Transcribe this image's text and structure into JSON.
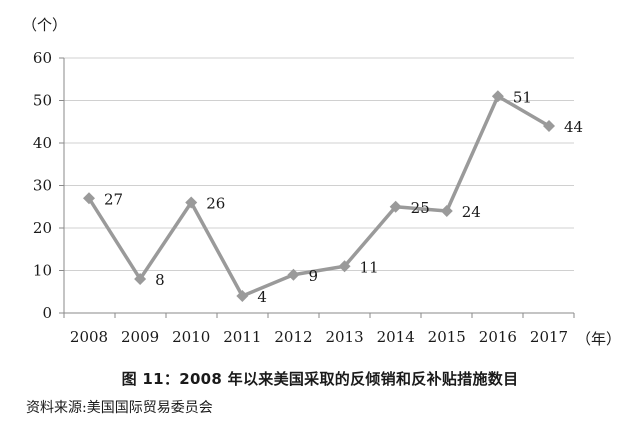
{
  "chart_data": {
    "type": "line",
    "x": [
      "2008",
      "2009",
      "2010",
      "2011",
      "2012",
      "2013",
      "2014",
      "2015",
      "2016",
      "2017"
    ],
    "series": [
      {
        "values": [
          27,
          8,
          26,
          4,
          9,
          11,
          25,
          24,
          51,
          44
        ]
      }
    ],
    "data_labels": [
      "27",
      "8",
      "26",
      "4",
      "9",
      "11",
      "25",
      "24",
      "51",
      "44"
    ],
    "ylabel": "（个）",
    "xlabel": "（年）",
    "ylim": [
      0,
      60
    ],
    "yticks": [
      0,
      10,
      20,
      30,
      40,
      50,
      60
    ],
    "grid": true,
    "marker": "diamond",
    "line_color": "#9a9a9a",
    "grid_color": "#d0d0d0",
    "axis_color": "#8a8a8a"
  },
  "caption": "图 11：2008 年以来美国采取的反倾销和反补贴措施数目",
  "source": "资料来源:美国国际贸易委员会"
}
